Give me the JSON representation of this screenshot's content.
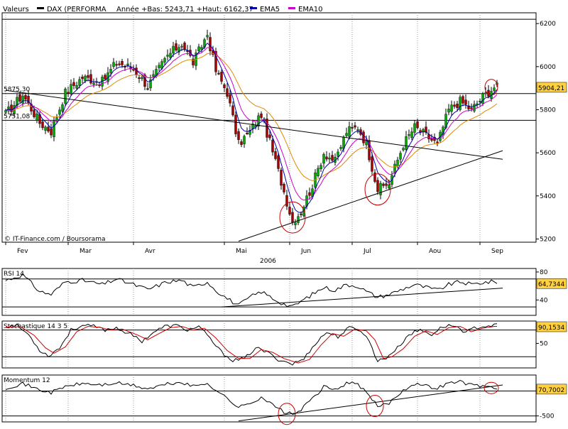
{
  "header": {
    "valeurs_label": "Valeurs",
    "legend": [
      {
        "name": "DAX (PERFORMA",
        "color": "#000000"
      },
      {
        "name": "Année +Bas: 5243,71 +Haut: 6162,37",
        "color": null
      },
      {
        "name": "EMA5",
        "color": "#0000aa"
      },
      {
        "name": "EMA10",
        "color": "#cc00cc"
      }
    ]
  },
  "colors": {
    "up_candle": "#00aa00",
    "down_candle": "#aa0000",
    "ema5": "#0000aa",
    "ema10": "#cc00cc",
    "ema20": "#e08a00",
    "signal": "#cc0000",
    "callout_bg": "#ffd040",
    "circle": "#cc0000"
  },
  "chart_data": [
    {
      "type": "candlestick",
      "panel": "price",
      "copyright": "© IT-Finance.com / Boursorama",
      "x_labels": [
        "Fev",
        "Mar",
        "Avr",
        "Mai",
        "Jun",
        "Jul",
        "Aou",
        "Sep"
      ],
      "year_label": "2006",
      "y_ticks": [
        5200,
        5400,
        5600,
        5800,
        6000,
        6200
      ],
      "ylim": [
        5185,
        6250
      ],
      "y_callouts": [
        {
          "label": "5875,30",
          "value": 5875
        },
        {
          "label": "5751,08",
          "value": 5751
        },
        {
          "label": "5904,21",
          "value": 5904,
          "highlight": true
        }
      ],
      "hlines": [
        6220,
        5875,
        5751
      ],
      "trendlines": [
        {
          "from": [
            0,
            5890
          ],
          "to": [
            175,
            5570
          ]
        },
        {
          "from": [
            82,
            5190
          ],
          "to": [
            175,
            5610
          ]
        }
      ],
      "circles": [
        {
          "index": 101,
          "value": 5300
        },
        {
          "index": 131,
          "value": 5430
        },
        {
          "index": 171,
          "value": 5905
        }
      ],
      "anchors": [
        [
          0,
          5780
        ],
        [
          6,
          5870
        ],
        [
          12,
          5740
        ],
        [
          16,
          5700
        ],
        [
          21,
          5880
        ],
        [
          27,
          5950
        ],
        [
          34,
          5930
        ],
        [
          39,
          6020
        ],
        [
          45,
          5990
        ],
        [
          50,
          5910
        ],
        [
          57,
          6050
        ],
        [
          62,
          6110
        ],
        [
          66,
          6020
        ],
        [
          71,
          6150
        ],
        [
          74,
          5980
        ],
        [
          78,
          5880
        ],
        [
          82,
          5640
        ],
        [
          86,
          5700
        ],
        [
          90,
          5780
        ],
        [
          95,
          5560
        ],
        [
          98,
          5420
        ],
        [
          101,
          5280
        ],
        [
          104,
          5330
        ],
        [
          108,
          5450
        ],
        [
          112,
          5600
        ],
        [
          116,
          5560
        ],
        [
          120,
          5700
        ],
        [
          124,
          5720
        ],
        [
          127,
          5640
        ],
        [
          131,
          5430
        ],
        [
          135,
          5460
        ],
        [
          140,
          5640
        ],
        [
          144,
          5720
        ],
        [
          148,
          5680
        ],
        [
          152,
          5640
        ],
        [
          156,
          5800
        ],
        [
          160,
          5840
        ],
        [
          164,
          5800
        ],
        [
          168,
          5860
        ],
        [
          172,
          5905
        ]
      ]
    },
    {
      "type": "line",
      "panel": "rsi",
      "title": "RSI 14",
      "y_ticks": [
        40,
        80
      ],
      "hlines": [
        70,
        30
      ],
      "ylim": [
        18,
        85
      ],
      "current_label": "64,7344",
      "trendline": {
        "from": [
          76,
          30
        ],
        "to": [
          175,
          57
        ]
      },
      "anchors": [
        [
          0,
          68
        ],
        [
          6,
          76
        ],
        [
          12,
          52
        ],
        [
          16,
          48
        ],
        [
          21,
          66
        ],
        [
          27,
          68
        ],
        [
          34,
          62
        ],
        [
          39,
          70
        ],
        [
          45,
          62
        ],
        [
          50,
          55
        ],
        [
          57,
          66
        ],
        [
          62,
          68
        ],
        [
          66,
          58
        ],
        [
          71,
          66
        ],
        [
          74,
          54
        ],
        [
          78,
          42
        ],
        [
          82,
          32
        ],
        [
          86,
          44
        ],
        [
          90,
          52
        ],
        [
          95,
          40
        ],
        [
          98,
          34
        ],
        [
          101,
          30
        ],
        [
          104,
          38
        ],
        [
          108,
          48
        ],
        [
          112,
          58
        ],
        [
          116,
          54
        ],
        [
          120,
          62
        ],
        [
          124,
          60
        ],
        [
          127,
          52
        ],
        [
          131,
          44
        ],
        [
          135,
          48
        ],
        [
          140,
          56
        ],
        [
          144,
          62
        ],
        [
          148,
          58
        ],
        [
          152,
          54
        ],
        [
          156,
          62
        ],
        [
          160,
          66
        ],
        [
          164,
          62
        ],
        [
          168,
          65
        ],
        [
          172,
          66
        ]
      ]
    },
    {
      "type": "line",
      "panel": "stochastic",
      "title": "Stochastique 14 3 5",
      "y_ticks": [
        50
      ],
      "hlines": [
        80,
        20
      ],
      "ylim": [
        -5,
        100
      ],
      "current_label": "90,1534",
      "anchors": [
        [
          0,
          88
        ],
        [
          4,
          90
        ],
        [
          8,
          70
        ],
        [
          12,
          35
        ],
        [
          15,
          22
        ],
        [
          19,
          40
        ],
        [
          23,
          80
        ],
        [
          27,
          90
        ],
        [
          31,
          88
        ],
        [
          35,
          80
        ],
        [
          39,
          85
        ],
        [
          44,
          70
        ],
        [
          48,
          55
        ],
        [
          52,
          75
        ],
        [
          56,
          88
        ],
        [
          60,
          90
        ],
        [
          64,
          80
        ],
        [
          68,
          88
        ],
        [
          72,
          60
        ],
        [
          76,
          30
        ],
        [
          80,
          12
        ],
        [
          84,
          15
        ],
        [
          88,
          40
        ],
        [
          92,
          30
        ],
        [
          96,
          14
        ],
        [
          101,
          4
        ],
        [
          105,
          15
        ],
        [
          109,
          50
        ],
        [
          113,
          75
        ],
        [
          117,
          65
        ],
        [
          121,
          85
        ],
        [
          125,
          80
        ],
        [
          128,
          55
        ],
        [
          131,
          10
        ],
        [
          134,
          18
        ],
        [
          138,
          40
        ],
        [
          142,
          70
        ],
        [
          146,
          80
        ],
        [
          150,
          70
        ],
        [
          154,
          88
        ],
        [
          158,
          90
        ],
        [
          162,
          75
        ],
        [
          166,
          86
        ],
        [
          170,
          90
        ],
        [
          172,
          90
        ]
      ],
      "signal_anchors": [
        [
          0,
          86
        ],
        [
          5,
          88
        ],
        [
          10,
          68
        ],
        [
          14,
          40
        ],
        [
          17,
          28
        ],
        [
          21,
          42
        ],
        [
          25,
          76
        ],
        [
          29,
          88
        ],
        [
          33,
          86
        ],
        [
          37,
          80
        ],
        [
          41,
          82
        ],
        [
          46,
          70
        ],
        [
          50,
          58
        ],
        [
          54,
          72
        ],
        [
          58,
          85
        ],
        [
          62,
          88
        ],
        [
          66,
          80
        ],
        [
          70,
          84
        ],
        [
          74,
          62
        ],
        [
          78,
          34
        ],
        [
          82,
          16
        ],
        [
          86,
          16
        ],
        [
          90,
          36
        ],
        [
          94,
          30
        ],
        [
          98,
          16
        ],
        [
          103,
          6
        ],
        [
          107,
          14
        ],
        [
          111,
          46
        ],
        [
          115,
          72
        ],
        [
          119,
          66
        ],
        [
          123,
          82
        ],
        [
          127,
          78
        ],
        [
          130,
          58
        ],
        [
          133,
          16
        ],
        [
          136,
          20
        ],
        [
          140,
          38
        ],
        [
          144,
          66
        ],
        [
          148,
          78
        ],
        [
          152,
          70
        ],
        [
          156,
          85
        ],
        [
          160,
          88
        ],
        [
          164,
          76
        ],
        [
          168,
          84
        ],
        [
          172,
          88
        ]
      ]
    },
    {
      "type": "line",
      "panel": "momentum",
      "title": "Momentum 12",
      "y_ticks": [
        -500
      ],
      "hlines": [
        0,
        -500
      ],
      "ylim": [
        -620,
        320
      ],
      "current_label": "70,7002",
      "trendline": {
        "from": [
          82,
          -600
        ],
        "to": [
          175,
          120
        ]
      },
      "circles": [
        {
          "index": 99,
          "value": -460
        },
        {
          "index": 130,
          "value": -300
        },
        {
          "index": 171,
          "value": 60
        }
      ],
      "anchors": [
        [
          0,
          60
        ],
        [
          6,
          150
        ],
        [
          12,
          20
        ],
        [
          16,
          -30
        ],
        [
          21,
          90
        ],
        [
          27,
          150
        ],
        [
          34,
          120
        ],
        [
          39,
          160
        ],
        [
          45,
          110
        ],
        [
          50,
          40
        ],
        [
          57,
          140
        ],
        [
          62,
          170
        ],
        [
          66,
          90
        ],
        [
          71,
          160
        ],
        [
          74,
          20
        ],
        [
          78,
          -150
        ],
        [
          82,
          -330
        ],
        [
          86,
          -250
        ],
        [
          90,
          -120
        ],
        [
          95,
          -320
        ],
        [
          98,
          -420
        ],
        [
          101,
          -470
        ],
        [
          104,
          -380
        ],
        [
          108,
          -150
        ],
        [
          112,
          80
        ],
        [
          116,
          20
        ],
        [
          120,
          160
        ],
        [
          124,
          140
        ],
        [
          127,
          -40
        ],
        [
          131,
          -310
        ],
        [
          135,
          -240
        ],
        [
          140,
          20
        ],
        [
          144,
          150
        ],
        [
          148,
          100
        ],
        [
          152,
          60
        ],
        [
          156,
          160
        ],
        [
          160,
          190
        ],
        [
          164,
          120
        ],
        [
          168,
          100
        ],
        [
          172,
          70
        ]
      ]
    }
  ]
}
